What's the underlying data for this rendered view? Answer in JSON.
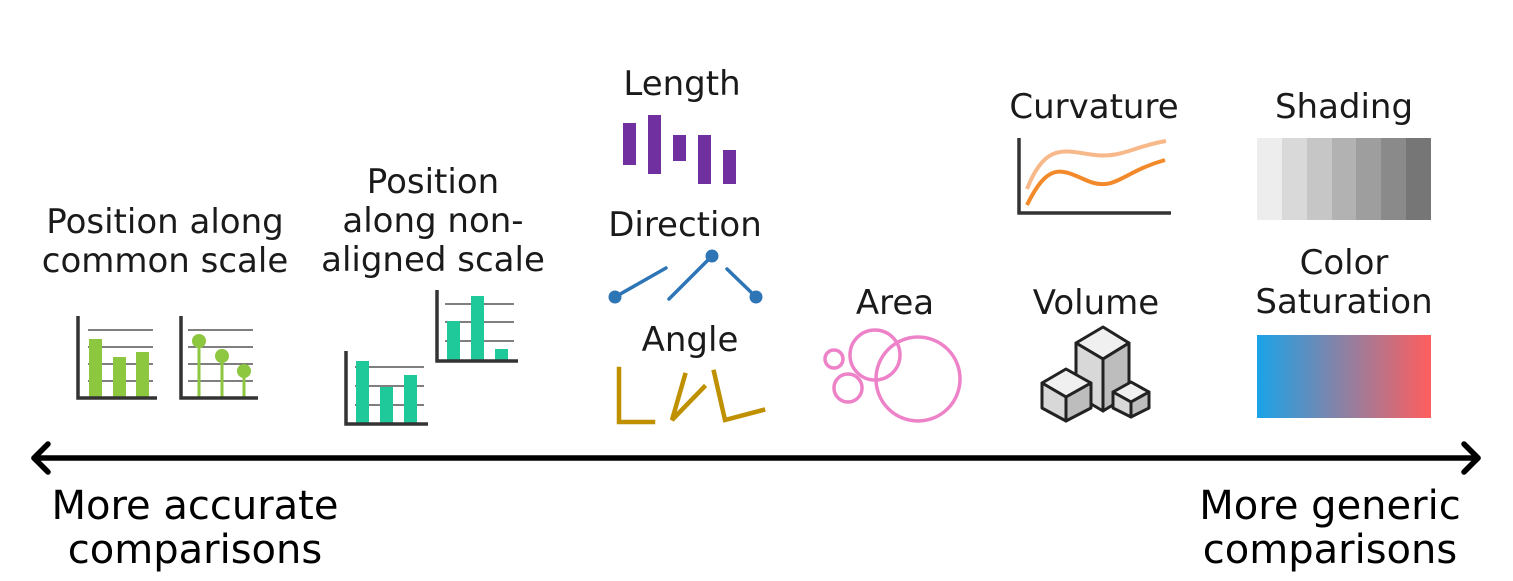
{
  "labels": {
    "position_common": [
      "Position along",
      "common scale"
    ],
    "position_nonaligned": [
      "Position",
      "along non-",
      "aligned scale"
    ],
    "length": "Length",
    "direction": "Direction",
    "angle": "Angle",
    "area": "Area",
    "volume": "Volume",
    "curvature": "Curvature",
    "shading": "Shading",
    "color_saturation": [
      "Color",
      "Saturation"
    ]
  },
  "axis": {
    "left": [
      "More accurate",
      "comparisons"
    ],
    "right": [
      "More generic",
      "comparisons"
    ]
  },
  "colors": {
    "green": "#8dc63f",
    "teal": "#1fc99a",
    "purple": "#7030a0",
    "blue": "#2e75b6",
    "gold": "#bf9000",
    "pink": "#ee82c8",
    "orange_dark": "#f28a2b",
    "orange_light": "#f8b98a",
    "axis": "#333333",
    "shading": [
      "#ededed",
      "#d9d9d9",
      "#c6c6c6",
      "#b2b2b2",
      "#9e9e9e",
      "#8a8a8a",
      "#767676"
    ],
    "saturation_from": "#1aa3e8",
    "saturation_to": "#ff5e5e"
  }
}
